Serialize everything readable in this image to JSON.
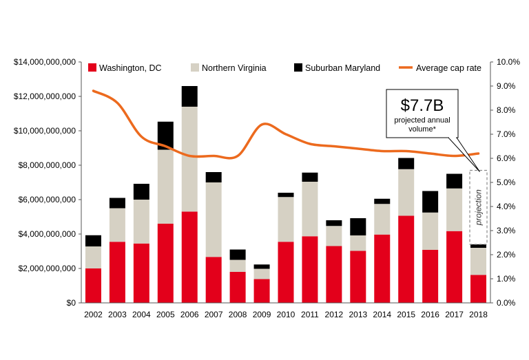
{
  "chart_data": {
    "type": "bar",
    "stacked": true,
    "categories": [
      "2002",
      "2003",
      "2004",
      "2005",
      "2006",
      "2007",
      "2008",
      "2009",
      "2010",
      "2011",
      "2012",
      "2013",
      "2014",
      "2015",
      "2016",
      "2017",
      "2018"
    ],
    "series": [
      {
        "name": "Washington, DC",
        "color": "#e3001b",
        "values": [
          2000000000,
          3550000000,
          3450000000,
          4600000000,
          5300000000,
          2670000000,
          1800000000,
          1380000000,
          3550000000,
          3870000000,
          3300000000,
          3020000000,
          3970000000,
          5060000000,
          3080000000,
          4170000000,
          1620000000
        ]
      },
      {
        "name": "Northern Virginia",
        "color": "#d6d1c4",
        "values": [
          1280000000,
          1950000000,
          2550000000,
          4300000000,
          6100000000,
          4330000000,
          700000000,
          600000000,
          2600000000,
          3170000000,
          1170000000,
          900000000,
          1780000000,
          2710000000,
          2170000000,
          2480000000,
          1580000000
        ]
      },
      {
        "name": "Suburban Maryland",
        "color": "#000000",
        "values": [
          650000000,
          600000000,
          920000000,
          1630000000,
          1200000000,
          600000000,
          600000000,
          250000000,
          250000000,
          530000000,
          330000000,
          1000000000,
          300000000,
          650000000,
          1250000000,
          850000000,
          200000000
        ]
      }
    ],
    "line": {
      "name": "Average cap rate",
      "color": "#ec6a1e",
      "axis": "right",
      "values": [
        0.088,
        0.083,
        0.069,
        0.065,
        0.061,
        0.061,
        0.061,
        0.074,
        0.07,
        0.066,
        0.065,
        0.064,
        0.063,
        0.063,
        0.062,
        0.061,
        0.062
      ]
    },
    "yleft": {
      "ylim": [
        0,
        14000000000
      ],
      "ticks": [
        "$0",
        "$2,000,000,000",
        "$4,000,000,000",
        "$6,000,000,000",
        "$8,000,000,000",
        "$10,000,000,000",
        "$12,000,000,000",
        "$14,000,000,000"
      ]
    },
    "yright": {
      "ylim": [
        0,
        0.1
      ],
      "ticks": [
        "0.0%",
        "1.0%",
        "2.0%",
        "3.0%",
        "4.0%",
        "5.0%",
        "6.0%",
        "7.0%",
        "8.0%",
        "9.0%",
        "10.0%"
      ]
    },
    "legend_position": "top",
    "grid": false,
    "annotations": {
      "callout_value": "$7.7B",
      "callout_line1": "projected annual",
      "callout_line2": "volume*",
      "projection_label": "projection",
      "projection_value": 7700000000
    }
  }
}
